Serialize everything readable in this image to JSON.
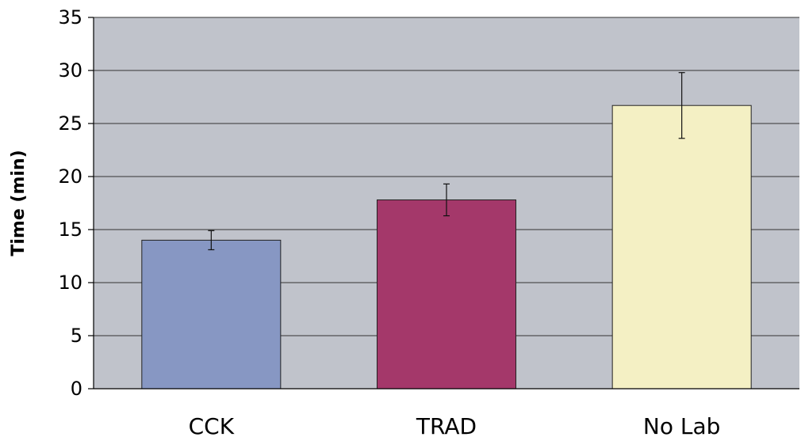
{
  "chart_data": {
    "type": "bar",
    "title": "",
    "xlabel": "",
    "ylabel": "Time (min)",
    "ylim": [
      0,
      35
    ],
    "yticks": [
      0,
      5,
      10,
      15,
      20,
      25,
      30,
      35
    ],
    "grid": true,
    "legend": "none",
    "categories": [
      "CCK",
      "TRAD",
      "No Lab"
    ],
    "values": [
      14,
      17.8,
      26.7
    ],
    "errors": [
      0.9,
      1.5,
      3.1
    ],
    "colors": [
      "#8797c3",
      "#a4386a",
      "#f4f0c4"
    ],
    "plot_background": "#c0c3cb"
  }
}
